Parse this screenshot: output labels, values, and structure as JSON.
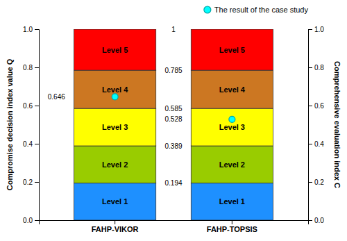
{
  "chart_data": {
    "type": "bar",
    "stacked": true,
    "grid": false,
    "legend": "upper right",
    "categories": [
      "FAHP-VIKOR",
      "FAHP-TOPSIS"
    ],
    "series": [
      {
        "name": "Level 1",
        "type": "bar",
        "color": "#1E90FF",
        "values": [
          0.194,
          0.194
        ]
      },
      {
        "name": "Level 2",
        "type": "bar",
        "color": "#99CC00",
        "values": [
          0.195,
          0.195
        ]
      },
      {
        "name": "Level 3",
        "type": "bar",
        "color": "#FFFF00",
        "values": [
          0.196,
          0.196
        ]
      },
      {
        "name": "Level 4",
        "type": "bar",
        "color": "#CC7722",
        "values": [
          0.2,
          0.2
        ]
      },
      {
        "name": "Level 5",
        "type": "bar",
        "color": "#FF0000",
        "values": [
          0.215,
          0.215
        ]
      },
      {
        "name": "The result of the case study",
        "type": "scatter",
        "marker": "circle",
        "color": "#00FFFF",
        "values": [
          0.646,
          0.528
        ],
        "data_labels": true
      }
    ],
    "annotations": [
      {
        "text": "0.194",
        "y": 0.194
      },
      {
        "text": "0.389",
        "y": 0.389
      },
      {
        "text": "0.585",
        "y": 0.585
      },
      {
        "text": "0.785",
        "y": 0.785
      },
      {
        "text": "1",
        "y": 1.0
      }
    ],
    "ylabel": "Compromise decision index value Q",
    "y2label": "Comprehensive evaluation index C",
    "ylim": [
      0,
      1
    ],
    "yticks": [
      {
        "value": 0,
        "label": "0.0"
      },
      0.2,
      0.4,
      0.6,
      0.8,
      {
        "value": 1,
        "label": "1.0"
      }
    ],
    "y2lim": [
      0,
      1
    ],
    "y2ticks": [
      {
        "value": 0,
        "label": "0.0"
      },
      0.2,
      0.4,
      0.6,
      0.8,
      {
        "value": 1,
        "label": "1.0"
      }
    ]
  }
}
